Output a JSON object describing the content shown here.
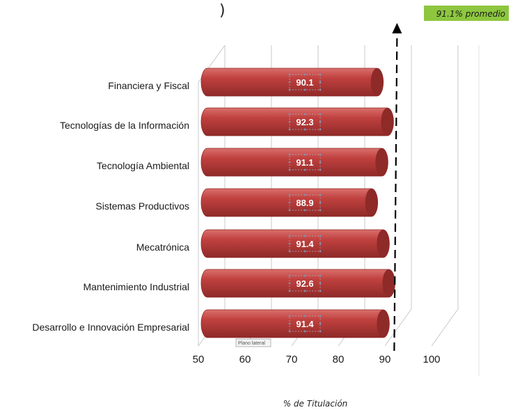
{
  "badge": {
    "text": "91.1% promedio",
    "color": "#8dc63f"
  },
  "tooltip": {
    "text": "Plano lateral"
  },
  "colors": {
    "bar": "#c0413f",
    "bar_dark": "#8e2a28",
    "bar_light": "#d9706c",
    "arrow": "#000000",
    "grid": "#c8c8c8"
  },
  "chart_data": {
    "type": "bar",
    "orientation": "horizontal",
    "style": "3d-cylinder",
    "categories": [
      "Financiera y Fiscal",
      "Tecnologías de la Información",
      "Tecnología Ambiental",
      "Sistemas Productivos",
      "Mecatrónica",
      "Mantenimiento Industrial",
      "Desarrollo e Innovación Empresarial"
    ],
    "values": [
      90.1,
      92.3,
      91.1,
      88.9,
      91.4,
      92.6,
      91.4
    ],
    "value_labels": [
      "90.1",
      "92.3",
      "91.1",
      "88.9",
      "91.4",
      "92.6",
      "91.4"
    ],
    "xlim": [
      50,
      100
    ],
    "xticks": [
      "50",
      "60",
      "70",
      "80",
      "90",
      "100"
    ],
    "xlabel": "% de Titulación",
    "ylabel": "",
    "grid": true,
    "reference_line": {
      "value": 91.1,
      "style": "dashed-arrow"
    }
  }
}
